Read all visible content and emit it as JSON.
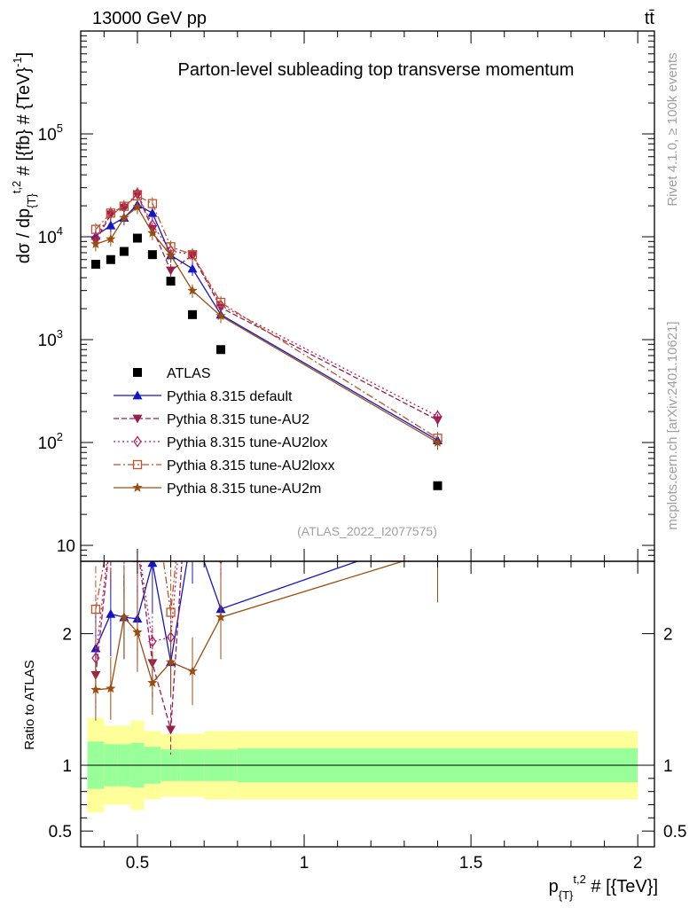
{
  "header": {
    "energy_label": "13000 GeV pp",
    "process_label": "tt̄"
  },
  "side_labels": {
    "rivet": "Rivet 4.1.0, ≥ 100k events",
    "mcplots": "mcplots.cern.ch [arXiv:2401.10621]"
  },
  "chart_data": {
    "type": "line",
    "title": "Parton-level subleading top transverse momentum",
    "analysis_tag": "(ATLAS_2022_I2077575)",
    "xlabel": "p_{T}^{t,2} # [{TeV}]",
    "ylabel": "dσ / dp_{T}^{t,2} # [{fb} # {TeV}^-1]",
    "ratio_ylabel": "Ratio to ATLAS",
    "xlim": [
      0.33,
      2.05
    ],
    "ylim": [
      7,
      1000000
    ],
    "ratio_ylim": [
      0.38,
      2.55
    ],
    "y_scale": "log",
    "x_ticks": [
      {
        "v": 0.5,
        "label": "0.5"
      },
      {
        "v": 1,
        "label": "1"
      },
      {
        "v": 1.5,
        "label": "1.5"
      },
      {
        "v": 2,
        "label": "2"
      }
    ],
    "y_ticks": [
      {
        "v": 10,
        "label": "10"
      },
      {
        "v": 100,
        "label": "10^2"
      },
      {
        "v": 1000,
        "label": "10^3"
      },
      {
        "v": 10000,
        "label": "10^4"
      },
      {
        "v": 100000,
        "label": "10^5"
      }
    ],
    "ratio_ticks": [
      {
        "v": 0.5,
        "label": "0.5"
      },
      {
        "v": 1,
        "label": "1"
      },
      {
        "v": 2,
        "label": "2"
      }
    ],
    "bins": [
      {
        "lo": 0.35,
        "hi": 0.4,
        "x": 0.375
      },
      {
        "lo": 0.4,
        "hi": 0.44,
        "x": 0.42
      },
      {
        "lo": 0.44,
        "hi": 0.48,
        "x": 0.46
      },
      {
        "lo": 0.48,
        "hi": 0.52,
        "x": 0.5
      },
      {
        "lo": 0.52,
        "hi": 0.57,
        "x": 0.545
      },
      {
        "lo": 0.57,
        "hi": 0.63,
        "x": 0.6
      },
      {
        "lo": 0.63,
        "hi": 0.7,
        "x": 0.665
      },
      {
        "lo": 0.7,
        "hi": 0.8,
        "x": 0.75
      },
      {
        "lo": 0.8,
        "hi": 2.0,
        "x": 1.4
      }
    ],
    "band_stat": [
      0.18,
      0.16,
      0.16,
      0.17,
      0.14,
      0.12,
      0.12,
      0.12,
      0.13
    ],
    "band_total": [
      0.36,
      0.3,
      0.3,
      0.34,
      0.26,
      0.24,
      0.24,
      0.26,
      0.26
    ],
    "series": [
      {
        "name": "ATLAS",
        "marker": "square",
        "color": "#000000",
        "dash": "",
        "values": [
          5400,
          6000,
          7200,
          9700,
          6700,
          3700,
          1750,
          800,
          38
        ]
      },
      {
        "name": "Pythia 8.315 default",
        "marker": "triangle-up",
        "color": "#1515c8",
        "dash": "",
        "values": [
          10200,
          12900,
          15300,
          20500,
          17000,
          6600,
          4900,
          1750,
          105
        ],
        "err_frac": 0.15
      },
      {
        "name": "Pythia 8.315 tune-AU2",
        "marker": "triangle-down",
        "color": "#991e4c",
        "dash": "6,3",
        "values": [
          9100,
          16500,
          19200,
          26000,
          11900,
          4700,
          6600,
          2050,
          165
        ],
        "err_frac": 0.15
      },
      {
        "name": "Pythia 8.315 tune-AU2lox",
        "marker": "diamond",
        "color": "#b0206a",
        "dash": "2,3",
        "values": [
          9800,
          16900,
          19500,
          26300,
          13000,
          7300,
          6700,
          2150,
          180
        ],
        "err_frac": 0.15
      },
      {
        "name": "Pythia 8.315 tune-AU2loxx",
        "marker": "open-square",
        "color": "#c0532a",
        "dash": "8,3,2,3",
        "values": [
          11800,
          17000,
          19800,
          25000,
          21000,
          8000,
          6700,
          2300,
          110
        ],
        "err_frac": 0.15
      },
      {
        "name": "Pythia 8.315 tune-AU2m",
        "marker": "star",
        "color": "#9a4d0e",
        "dash": "",
        "values": [
          8500,
          9500,
          15300,
          19500,
          10900,
          6600,
          3000,
          1700,
          100
        ],
        "err_frac": 0.15
      }
    ]
  }
}
